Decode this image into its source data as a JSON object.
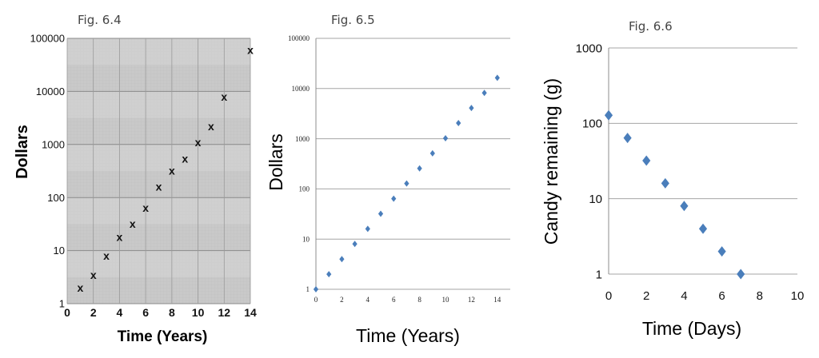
{
  "chart_data": [
    {
      "type": "scatter",
      "title": "Fig. 6.4",
      "xlabel": "Time (Years)",
      "ylabel": "Dollars",
      "xlim": [
        0,
        14
      ],
      "ylim": [
        1,
        100000
      ],
      "yscale": "log",
      "xticks": [
        "0",
        "2",
        "4",
        "6",
        "8",
        "10",
        "12",
        "14"
      ],
      "yticks": [
        "1",
        "10",
        "100",
        "1000",
        "10000",
        "100000"
      ],
      "marker": "x",
      "grid": true,
      "background": "graph-paper",
      "series": [
        {
          "x": [
            1,
            2,
            3,
            4,
            5,
            6,
            7,
            8,
            9,
            10,
            11,
            12,
            14
          ],
          "y": [
            2,
            3.5,
            8,
            18,
            32,
            64,
            160,
            320,
            540,
            1100,
            2200,
            8000,
            60000
          ]
        }
      ]
    },
    {
      "type": "scatter",
      "title": "Fig. 6.5",
      "xlabel": "Time (Years)",
      "ylabel": "Dollars",
      "xlim": [
        0,
        15
      ],
      "ylim": [
        1,
        100000
      ],
      "yscale": "log",
      "xticks": [
        "0",
        "2",
        "4",
        "6",
        "8",
        "10",
        "12",
        "14"
      ],
      "yticks": [
        "1",
        "10",
        "100",
        "1000",
        "10000",
        "100000"
      ],
      "marker": "diamond",
      "color": "#4a7ebb",
      "grid": true,
      "series": [
        {
          "x": [
            0,
            1,
            2,
            3,
            4,
            5,
            6,
            7,
            8,
            9,
            10,
            11,
            12,
            13,
            14
          ],
          "y": [
            1,
            2,
            4,
            8,
            16,
            32,
            64,
            128,
            256,
            512,
            1024,
            2048,
            4096,
            8192,
            16384
          ]
        }
      ]
    },
    {
      "type": "scatter",
      "title": "Fig. 6.6",
      "xlabel": "Time (Days)",
      "ylabel": "Candy remaining (g)",
      "xlim": [
        0,
        10
      ],
      "ylim": [
        1,
        1000
      ],
      "yscale": "log",
      "xticks": [
        "0",
        "2",
        "4",
        "6",
        "8",
        "10"
      ],
      "yticks": [
        "1",
        "10",
        "100",
        "1000"
      ],
      "marker": "diamond",
      "color": "#4a7ebb",
      "grid": true,
      "series": [
        {
          "x": [
            0,
            1,
            2,
            3,
            4,
            5,
            6,
            7
          ],
          "y": [
            128,
            64,
            32,
            16,
            8,
            4,
            2,
            1
          ]
        }
      ]
    }
  ]
}
